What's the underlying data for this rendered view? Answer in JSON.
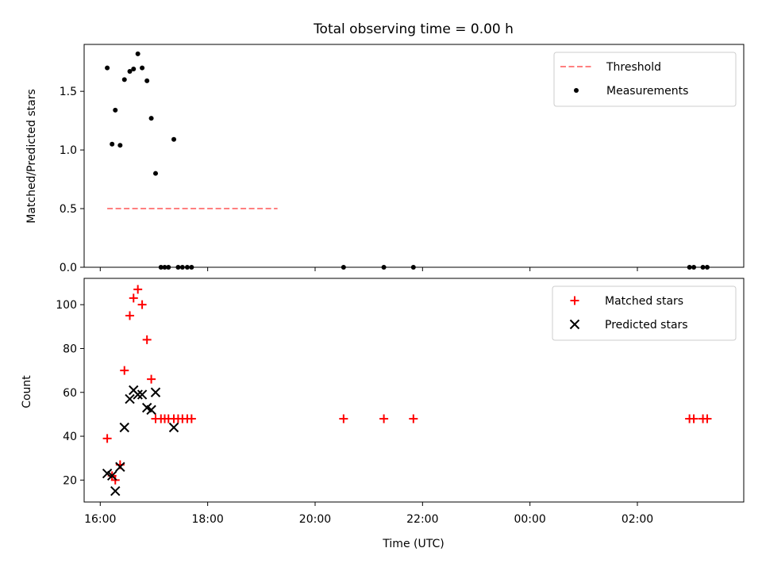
{
  "figure": {
    "title": "Total observing time = 0.00 h"
  },
  "chart_data": [
    {
      "type": "scatter",
      "ylabel": "Matched/Predicted stars",
      "xlabel": "",
      "ylim": [
        0,
        1.9
      ],
      "yticks": [
        0.0,
        0.5,
        1.0,
        1.5
      ],
      "yticklabels": [
        "0.0",
        "0.5",
        "1.0",
        "1.5"
      ],
      "legend_position": "top-right",
      "lines": [
        {
          "name": "Threshold",
          "style": "dashed",
          "color": "#ff7f7f",
          "x": [
            16.13,
            19.3
          ],
          "y": [
            0.5,
            0.5
          ]
        }
      ],
      "series": [
        {
          "name": "Measurements",
          "marker": "dot",
          "color": "#000000",
          "x": [
            16.13,
            16.22,
            16.28,
            16.37,
            16.45,
            16.55,
            16.62,
            16.7,
            16.78,
            16.87,
            16.95,
            17.03,
            17.13,
            17.2,
            17.27,
            17.37,
            17.45,
            17.53,
            17.62,
            17.7,
            20.53,
            21.28,
            21.83,
            26.97,
            27.05,
            27.22,
            27.3
          ],
          "y": [
            1.7,
            1.05,
            1.34,
            1.04,
            1.6,
            1.67,
            1.69,
            1.82,
            1.7,
            1.59,
            1.27,
            0.8,
            0.0,
            0.0,
            0.0,
            1.09,
            0.0,
            0.0,
            0.0,
            0.0,
            0.0,
            0.0,
            0.0,
            0.0,
            0.0,
            0.0,
            0.0
          ]
        }
      ]
    },
    {
      "type": "scatter",
      "ylabel": "Count",
      "xlabel": "Time (UTC)",
      "ylim": [
        10,
        112
      ],
      "yticks": [
        20,
        40,
        60,
        80,
        100
      ],
      "yticklabels": [
        "20",
        "40",
        "60",
        "80",
        "100"
      ],
      "xlim": [
        15.7,
        27.98
      ],
      "xticks": [
        16,
        18,
        20,
        22,
        24,
        26
      ],
      "xticklabels": [
        "16:00",
        "18:00",
        "20:00",
        "22:00",
        "00:00",
        "02:00"
      ],
      "legend_position": "top-right",
      "series": [
        {
          "name": "Matched stars",
          "marker": "plus",
          "color": "#ff0000",
          "x": [
            16.13,
            16.22,
            16.28,
            16.37,
            16.45,
            16.55,
            16.62,
            16.7,
            16.78,
            16.87,
            16.95,
            17.03,
            17.13,
            17.2,
            17.27,
            17.37,
            17.45,
            17.53,
            17.62,
            17.7,
            20.53,
            21.28,
            21.83,
            26.97,
            27.05,
            27.22,
            27.3
          ],
          "y": [
            39,
            22,
            20,
            27,
            70,
            95,
            103,
            107,
            100,
            84,
            66,
            48,
            48,
            48,
            48,
            48,
            48,
            48,
            48,
            48,
            48,
            48,
            48,
            48,
            48,
            48,
            48
          ]
        },
        {
          "name": "Predicted stars",
          "marker": "x",
          "color": "#000000",
          "x": [
            16.13,
            16.22,
            16.28,
            16.37,
            16.45,
            16.55,
            16.62,
            16.7,
            16.78,
            16.87,
            16.95,
            17.03,
            17.37
          ],
          "y": [
            23,
            22,
            15,
            26,
            44,
            57,
            61,
            59,
            59,
            53,
            52,
            60,
            44
          ]
        }
      ]
    }
  ]
}
